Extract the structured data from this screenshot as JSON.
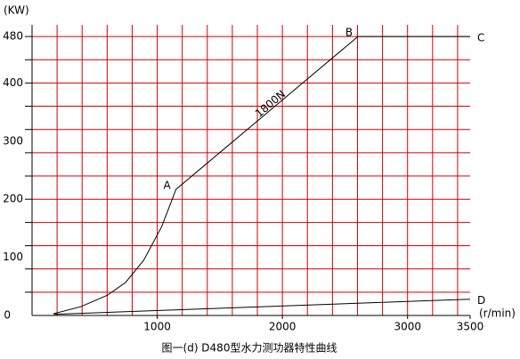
{
  "chart_data": {
    "type": "line",
    "title": "图一(d) D480型水力测功器特性曲线",
    "x_label": "(r/min)",
    "y_label": "(KW)",
    "xlim": [
      0,
      3500
    ],
    "ylim": [
      0,
      500
    ],
    "xticks": [
      1000,
      2000,
      3000,
      3500
    ],
    "yticks": [
      0,
      100,
      200,
      300,
      400,
      480
    ],
    "xgrid": [
      200,
      400,
      600,
      800,
      1000,
      1200,
      1400,
      1600,
      1800,
      2000,
      2200,
      2400,
      2600,
      2800,
      3000,
      3200,
      3400
    ],
    "ygrid": [
      40,
      80,
      120,
      160,
      200,
      240,
      280,
      320,
      360,
      400,
      440,
      480
    ],
    "grid": true,
    "grid_color": "#d40000",
    "series": [
      {
        "name": "1800N",
        "color": "#000000",
        "x": [
          173,
          388,
          604,
          748,
          892,
          1036,
          1150,
          2604,
          3500
        ],
        "values": [
          3,
          15,
          35,
          57,
          95,
          153,
          217,
          480,
          480
        ]
      },
      {
        "color": "#000000",
        "x": [
          173,
          3500
        ],
        "values": [
          2,
          28
        ]
      }
    ],
    "annotations": [
      {
        "text": "A",
        "x": 1150,
        "y": 217
      },
      {
        "text": "B",
        "x": 2604,
        "y": 480
      },
      {
        "text": "C",
        "x": 3500,
        "y": 480
      },
      {
        "text": "D",
        "x": 3500,
        "y": 28
      }
    ]
  }
}
